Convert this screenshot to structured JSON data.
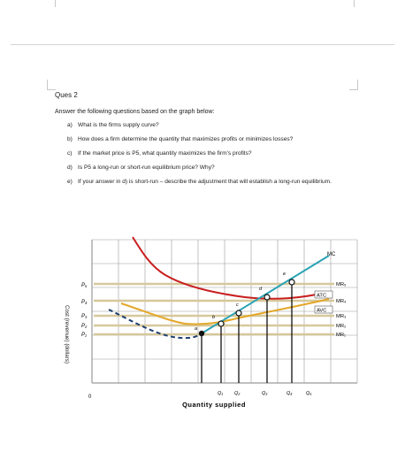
{
  "document": {
    "title": "Ques 2",
    "intro": "Answer the following questions based on the graph below:",
    "questions": [
      {
        "label": "a)",
        "text": "What is the firms supply curve?"
      },
      {
        "label": "b)",
        "text": "How does a firm determine the quantity that maximizes profits or minimizes losses?"
      },
      {
        "label": "c)",
        "text": "If the market price is P5, what quantity maximizes the firm's profits?"
      },
      {
        "label": "d)",
        "text": "Is P5 a long-run or short-run equilibrium price? Why?"
      },
      {
        "label": "e)",
        "text": "If your answer in d) is short-run – describe the adjustment that will establish a long-run equilibrium."
      }
    ]
  },
  "chart_data": {
    "type": "line",
    "ylabel": "Cost (revenue) (dollars)",
    "xlabel": "Quantity supplied",
    "origin_label": "0",
    "price_levels": [
      "P₁",
      "P₂",
      "P₃",
      "P₄",
      "P₅"
    ],
    "quantity_levels": [
      "Q₁",
      "Q₂",
      "Q₃",
      "Q₄",
      "Q₅"
    ],
    "mr_labels": [
      "MR₁",
      "MR₂",
      "MR₃",
      "MR₄",
      "MR₅"
    ],
    "curve_labels": {
      "mc": "MC",
      "atc": "ATC",
      "avc": "AVC"
    },
    "point_labels": [
      "a",
      "b",
      "c",
      "d",
      "e"
    ],
    "colors": {
      "mc": "#2aa3b5",
      "atc": "#c91e1e",
      "avc": "#e3a82b",
      "mr": "#d7c89a",
      "grid": "#9a9a9a",
      "supply_dash": "#1f3f6e"
    },
    "grid": true
  }
}
